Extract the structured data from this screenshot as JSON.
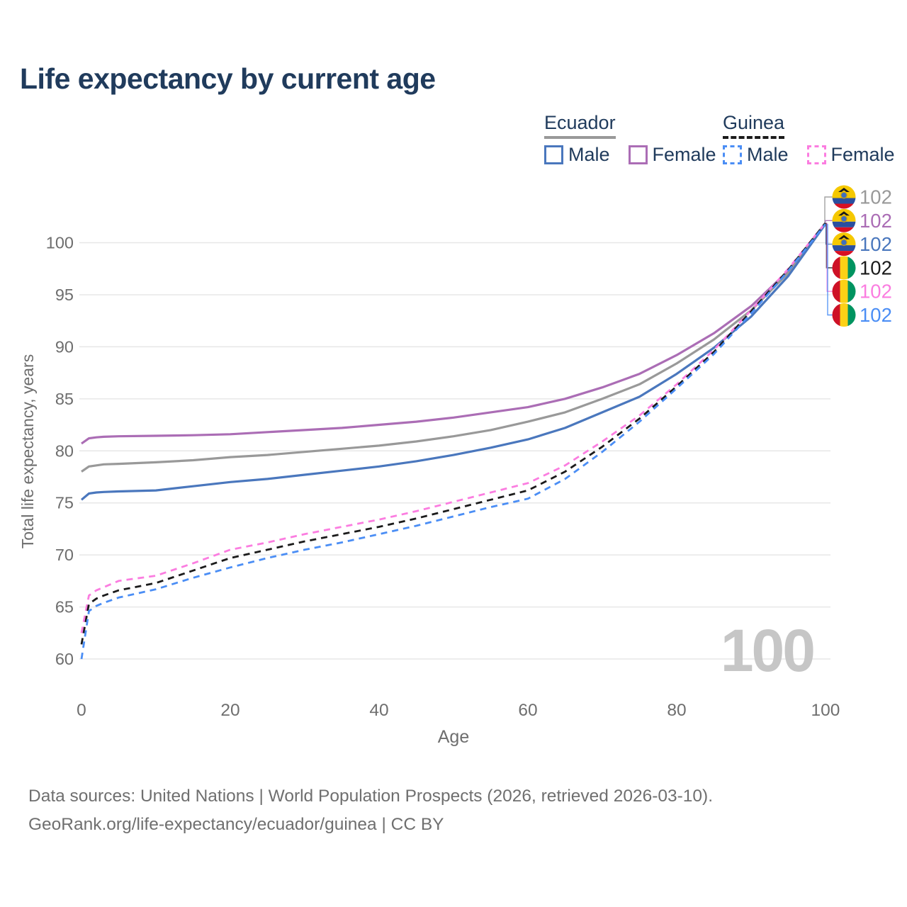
{
  "title": "Life expectancy by current age",
  "legend": {
    "groups": [
      {
        "label": "Ecuador",
        "line_style": "solid",
        "items": [
          {
            "label": "Male"
          },
          {
            "label": "Female"
          }
        ]
      },
      {
        "label": "Guinea",
        "line_style": "dashed",
        "items": [
          {
            "label": "Male"
          },
          {
            "label": "Female"
          }
        ]
      }
    ]
  },
  "colors": {
    "title": "#203b5c",
    "ecuador_male": "#4a77bd",
    "ecuador_female": "#ab6db5",
    "ecuador_total": "#999999",
    "guinea_male": "#4b8ef5",
    "guinea_female": "#fb7de0",
    "guinea_total": "#1b1b1b",
    "grid": "#e7e7e7",
    "axis_text": "#6e6e6e",
    "watermark": "#c6c6c6",
    "footer_text": "#6f6f6f"
  },
  "watermark": "100",
  "end_labels": [
    {
      "flag": "ecuador",
      "value": "102",
      "color": "#999999",
      "series": 1
    },
    {
      "flag": "ecuador",
      "value": "102",
      "color": "#ab6db5",
      "series": 0
    },
    {
      "flag": "ecuador",
      "value": "102",
      "color": "#4a77bd",
      "series": 2
    },
    {
      "flag": "guinea",
      "value": "102",
      "color": "#1b1b1b",
      "series": 4
    },
    {
      "flag": "guinea",
      "value": "102",
      "color": "#fb7de0",
      "series": 3
    },
    {
      "flag": "guinea",
      "value": "102",
      "color": "#4b8ef5",
      "series": 5
    }
  ],
  "footer": {
    "line1": "Data sources: United Nations | World Population Prospects (2026, retrieved 2026-03-10).",
    "line2": "GeoRank.org/life-expectancy/ecuador/guinea | CC BY"
  },
  "chart_data": {
    "type": "line",
    "title": "Life expectancy by current age",
    "xlabel": "Age",
    "ylabel": "Total life expectancy, years",
    "xlim": [
      0,
      100
    ],
    "ylim": [
      60,
      103
    ],
    "xticks": [
      0,
      20,
      40,
      60,
      80,
      100
    ],
    "yticks": [
      60,
      65,
      70,
      75,
      80,
      85,
      90,
      95,
      100
    ],
    "grid": "horizontal",
    "legend_position": "top-right",
    "current_age_indicator": "100",
    "x": [
      0,
      1,
      2,
      3,
      5,
      10,
      15,
      20,
      25,
      30,
      35,
      40,
      45,
      50,
      55,
      60,
      65,
      70,
      75,
      80,
      85,
      90,
      95,
      100
    ],
    "series": [
      {
        "name": "Ecuador Female",
        "country": "Ecuador",
        "sex": "Female",
        "color": "#ab6db5",
        "dashed": false,
        "values": [
          80.7,
          81.2,
          81.3,
          81.35,
          81.4,
          81.45,
          81.5,
          81.6,
          81.8,
          82.0,
          82.2,
          82.5,
          82.8,
          83.2,
          83.7,
          84.2,
          85.0,
          86.1,
          87.4,
          89.2,
          91.3,
          93.9,
          97.3,
          101.9
        ]
      },
      {
        "name": "Ecuador Total",
        "country": "Ecuador",
        "sex": "Total",
        "color": "#999999",
        "dashed": false,
        "values": [
          78.0,
          78.5,
          78.6,
          78.7,
          78.75,
          78.9,
          79.1,
          79.4,
          79.6,
          79.9,
          80.2,
          80.5,
          80.9,
          81.4,
          82.0,
          82.8,
          83.7,
          85.0,
          86.4,
          88.4,
          90.7,
          93.5,
          97.1,
          101.9
        ]
      },
      {
        "name": "Ecuador Male",
        "country": "Ecuador",
        "sex": "Male",
        "color": "#4a77bd",
        "dashed": false,
        "values": [
          75.3,
          75.9,
          76.0,
          76.05,
          76.1,
          76.2,
          76.6,
          77.0,
          77.3,
          77.7,
          78.1,
          78.5,
          79.0,
          79.6,
          80.3,
          81.1,
          82.2,
          83.7,
          85.2,
          87.4,
          89.9,
          92.9,
          96.8,
          101.8
        ]
      },
      {
        "name": "Guinea Female",
        "country": "Guinea",
        "sex": "Female",
        "color": "#fb7de0",
        "dashed": true,
        "values": [
          62.5,
          66.1,
          66.6,
          66.9,
          67.5,
          68.0,
          69.2,
          70.5,
          71.2,
          72.0,
          72.7,
          73.4,
          74.2,
          75.1,
          76.0,
          76.9,
          78.6,
          80.9,
          83.4,
          86.4,
          89.7,
          93.5,
          97.5,
          101.9
        ]
      },
      {
        "name": "Guinea Total",
        "country": "Guinea",
        "sex": "Total",
        "color": "#1b1b1b",
        "dashed": true,
        "values": [
          61.4,
          65.3,
          65.8,
          66.1,
          66.6,
          67.3,
          68.5,
          69.7,
          70.5,
          71.3,
          72.0,
          72.7,
          73.5,
          74.4,
          75.3,
          76.2,
          78.0,
          80.4,
          83.1,
          86.2,
          89.5,
          93.4,
          97.4,
          101.9
        ]
      },
      {
        "name": "Guinea Male",
        "country": "Guinea",
        "sex": "Male",
        "color": "#4b8ef5",
        "dashed": true,
        "values": [
          60.0,
          64.6,
          65.1,
          65.4,
          65.9,
          66.7,
          67.8,
          68.8,
          69.7,
          70.5,
          71.2,
          72.0,
          72.8,
          73.7,
          74.6,
          75.4,
          77.3,
          79.9,
          82.8,
          86.0,
          89.3,
          93.2,
          97.3,
          101.8
        ]
      }
    ]
  }
}
